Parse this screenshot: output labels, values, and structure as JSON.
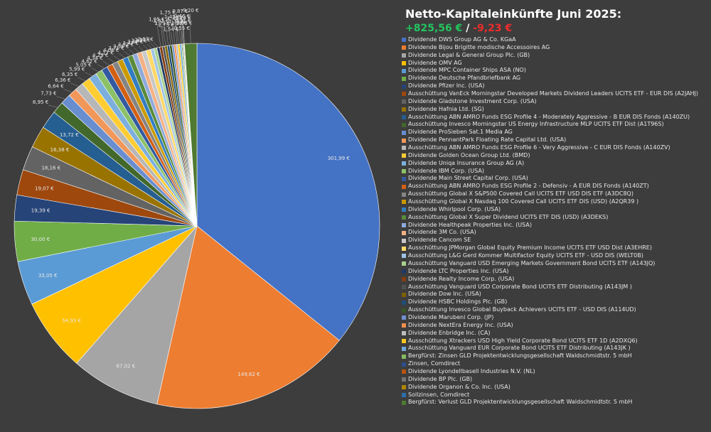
{
  "chart_data": {
    "type": "pie",
    "title": "Netto-Kapitaleinkünfte Juni 2025:",
    "total_positive": "+825,56 €",
    "separator": "/",
    "total_negative": "-9,23 €",
    "start_angle_deg": 0,
    "direction": "clockwise",
    "legend_position": "right",
    "slices": [
      {
        "label": "Dividende DWS Group AG & Co. KGaA",
        "value": 301.99,
        "value_label": "301,99 €",
        "color": "#4472c4"
      },
      {
        "label": "Dividende Bijou Brigitte modische Accessoires AG",
        "value": 149.62,
        "value_label": "149,62 €",
        "color": "#ed7d31"
      },
      {
        "label": "Dividende Legal & General Group Plc. (GB)",
        "value": 67.02,
        "value_label": "67,02 €",
        "color": "#a5a5a5"
      },
      {
        "label": "Dividende OMV AG",
        "value": 54.93,
        "value_label": "54,93 €",
        "color": "#ffc000"
      },
      {
        "label": "Dividende MPC Container Ships ASA (NO)",
        "value": 33.05,
        "value_label": "33,05 €",
        "color": "#5b9bd5"
      },
      {
        "label": "Dividende Deutsche Pfandbriefbank AG",
        "value": 30.0,
        "value_label": "30,00 €",
        "color": "#70ad47"
      },
      {
        "label": "Dividende Pfizer Inc. (USA)",
        "value": 19.39,
        "value_label": "19,39 €",
        "color": "#264478"
      },
      {
        "label": "Ausschüttung VanEck Morningstar Developed Markets Dividend Leaders UCITS ETF - EUR DIS (A2JAHJ)",
        "value": 19.07,
        "value_label": "19,07 €",
        "color": "#9e480e"
      },
      {
        "label": "Dividende Gladstone Investment Corp. (USA)",
        "value": 18.16,
        "value_label": "18,16 €",
        "color": "#636363"
      },
      {
        "label": "Dividende Hafnia Ltd. (SG)",
        "value": 16.38,
        "value_label": "16,38 €",
        "color": "#997300"
      },
      {
        "label": "Ausschüttung ABN AMRO Funds ESG Profile 4 - Moderately Aggressive - B EUR DIS Fonds (A140ZU)",
        "value": 13.72,
        "value_label": "13,72 €",
        "color": "#255e91"
      },
      {
        "label": "Ausschüttung Invesco Morningstar US Energy Infrastructure MLP UCITS ETF Dist (A1T96S)",
        "value": 8.95,
        "value_label": "8,95 €",
        "color": "#43682b"
      },
      {
        "label": "Dividende ProSieben Sat.1 Media AG",
        "value": 7.73,
        "value_label": "7,73 €",
        "color": "#698ed0"
      },
      {
        "label": "Dividende PennantPark Floating Rate Capital Ltd. (USA)",
        "value": 6.64,
        "value_label": "6,64 €",
        "color": "#f1975a"
      },
      {
        "label": "Ausschüttung ABN AMRO Funds ESG Profile 6 - Very Aggressive - C EUR DIS Fonds (A140ZV)",
        "value": 6.36,
        "value_label": "6,36 €",
        "color": "#b7b7b7"
      },
      {
        "label": "Dividende Golden Ocean Group Ltd. (BMD)",
        "value": 6.35,
        "value_label": "6,35 €",
        "color": "#ffcd33"
      },
      {
        "label": "Dividende Uniqa Insurance Group AG (A)",
        "value": 5.99,
        "value_label": "5,99 €",
        "color": "#7cafdd"
      },
      {
        "label": "Dividende IBM Corp. (USA)",
        "value": 5.05,
        "value_label": "5,05 €",
        "color": "#8cc168"
      },
      {
        "label": "Dividende Main Street Capital Corp. (USA)",
        "value": 4.62,
        "value_label": "4,62 €",
        "color": "#335aa1"
      },
      {
        "label": "Ausschüttung ABN AMRO Funds ESG Profile 2 - Defensiv - A EUR DIS Fonds (A140ZT)",
        "value": 4.34,
        "value_label": "4,34 €",
        "color": "#d26012"
      },
      {
        "label": "Ausschüttung Global X S&P500 Covered Call UCITS ETF USD DIS ETF (A3DC8Q)",
        "value": 4.29,
        "value_label": "4,29 €",
        "color": "#848484"
      },
      {
        "label": "Ausschüttung Global X Nasdaq 100 Covered Call UCITS ETF DIS (USD) (A2QR39 )",
        "value": 4.17,
        "value_label": "4,17 €",
        "color": "#cc9a00"
      },
      {
        "label": "Dividende Whirlpool Corp. (USA)",
        "value": 4.06,
        "value_label": "4,06 €",
        "color": "#327dc2"
      },
      {
        "label": "Ausschüttung Global X Super Dividend UCITS ETF DIS (USD) (A3DEKS)",
        "value": 3.71,
        "value_label": "3,71 €",
        "color": "#5a8a39"
      },
      {
        "label": "Dividende Healthpeak Properties Inc.  (USA)",
        "value": 3.56,
        "value_label": "3,56 €",
        "color": "#8faadc"
      },
      {
        "label": "Dividende 3M Co. (USA)",
        "value": 3.52,
        "value_label": "3,52 €",
        "color": "#f4b183"
      },
      {
        "label": "Dividende Cancom SE",
        "value": 3.47,
        "value_label": "3,47 €",
        "color": "#c9c9c9"
      },
      {
        "label": "Ausschüttung JPMorgan Global Equity Premium Income UCITS ETF USD Dist (A3EHRE)",
        "value": 3.37,
        "value_label": "3,37 €",
        "color": "#ffd966"
      },
      {
        "label": "Ausschüttung L&G Gerd Kommer Multifactor Equity UCITS ETF - USD DIS (WELT0B)",
        "value": 2.43,
        "value_label": "2,43 €",
        "color": "#9dc3e6"
      },
      {
        "label": "Ausschüttung Vanguard USD Emerging Markets Government Bond UCITS ETF (A143JQ)",
        "value": 2.31,
        "value_label": "2,31 €",
        "color": "#a9d18e"
      },
      {
        "label": "Dividende LTC Properties Inc. (USA)",
        "value": 2.07,
        "value_label": "2,07 €",
        "color": "#203864"
      },
      {
        "label": "Dividende Realty Income Corp. (USA)",
        "value": 1.95,
        "value_label": "1,95 €",
        "color": "#843c0c"
      },
      {
        "label": "Ausschüttung Vanguard USD Corporate Bond UCITS ETF Distributing (A143JM )",
        "value": 1.92,
        "value_label": "1,92 €",
        "color": "#525252"
      },
      {
        "label": "Dividende Dow Inc. (USA)",
        "value": 1.79,
        "value_label": "1,79 €",
        "color": "#7f6000"
      },
      {
        "label": "Dividende HSBC Holdings Plc. (GB)",
        "value": 1.75,
        "value_label": "1,75 €",
        "color": "#1f4e79"
      },
      {
        "label": "Ausschüttung Invesco Global Buyback Achievers UCITS ETF - USD DIS (A114UD)",
        "value": 1.75,
        "value_label": "1,75 €",
        "color": "#385723"
      },
      {
        "label": "Dividende Marubeni Corp. (JP)",
        "value": 1.54,
        "value_label": "1,54 €",
        "color": "#6f8fce"
      },
      {
        "label": "Dividende NextEra Energy Inc. (USA)",
        "value": 1.45,
        "value_label": "1,45 €",
        "color": "#f08f4d"
      },
      {
        "label": "Dividende Enbridge Inc. (CA)",
        "value": 1.43,
        "value_label": "1,43 €",
        "color": "#bdbdbd"
      },
      {
        "label": "Ausschüttung Xtrackers USD High Yield Corporate Bond UCITS ETF 1D (A2DXQ6)",
        "value": 1.38,
        "value_label": "1,38 €",
        "color": "#ffc71a"
      },
      {
        "label": "Ausschüttung Vanguard EUR Corporate Bond UCITS ETF Distributing (A143JK )",
        "value": 1.28,
        "value_label": "1,28 €",
        "color": "#6fa6da"
      },
      {
        "label": "Bergfürst: Zinsen GLD Projektentwicklungsgesellschaft Waldschmidtstr. 5 mbH",
        "value": 0.87,
        "value_label": "0,87 €",
        "color": "#84bb5f"
      },
      {
        "label": "Zinsen, Comdirect",
        "value": 0.55,
        "value_label": "0,55 €",
        "color": "#2c4f8e"
      },
      {
        "label": "Dividende Lyondellbasell Industries N.V. (NL)",
        "value": 0.46,
        "value_label": "0,46 €",
        "color": "#b8550f"
      },
      {
        "label": "Dividende BP Plc. (GB)",
        "value": 0.24,
        "value_label": "0,24 €",
        "color": "#757575"
      },
      {
        "label": "Dividende Organon & Co. Inc. (USA)",
        "value": 0.11,
        "value_label": "0,11 €",
        "color": "#b38600"
      },
      {
        "label": "Sollzinsen, Comdirect",
        "value": -0.03,
        "value_label": "-0,03 €",
        "color": "#2c6fad"
      },
      {
        "label": "Bergfürst: Verlust  GLD Projektentwicklungsgesellschaft Waldschmidtstr. 5 mbH",
        "value": -9.2,
        "value_label": "-9,20 €",
        "color": "#4f7a31"
      }
    ]
  }
}
